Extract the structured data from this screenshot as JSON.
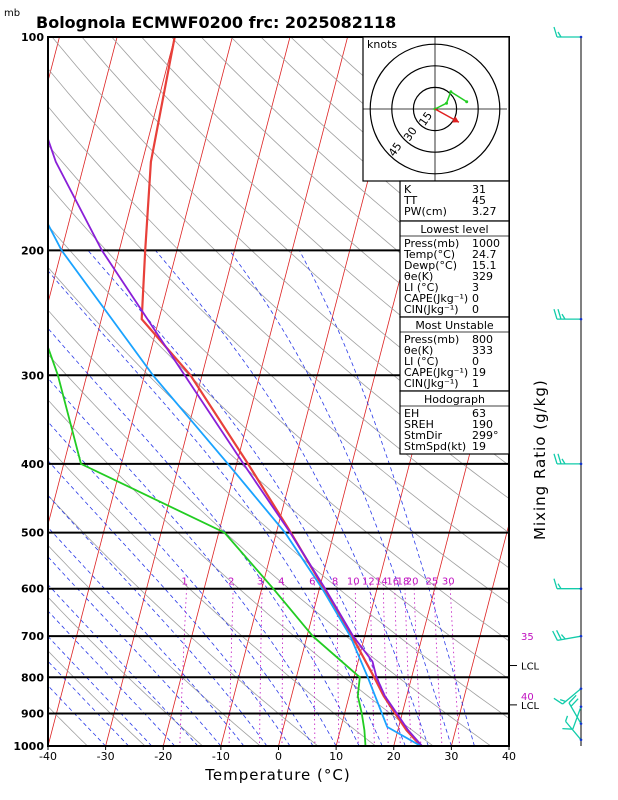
{
  "header": {
    "pressure_unit": "mb",
    "title": "Bolognola ECMWF0200 frc: 2025082118"
  },
  "colors": {
    "temperature": "#e8403a",
    "dewpoint": "#22cc22",
    "virtual_temperature": "#8a1fd8",
    "parcel": "#1aa3ff",
    "isotherm": "#dd2222",
    "dry_adiabat": "#a0a0a0",
    "moist_adiabat": "#2a3ae8",
    "mixing_ratio": "#c010c0",
    "barb": "#11ccaa"
  },
  "chart_data": {
    "type": "line",
    "xlabel": "Temperature (°C)",
    "ylabel": "Mixing Ratio (g/kg)",
    "x_ticks": [
      -40,
      -30,
      -20,
      -10,
      0,
      10,
      20,
      30,
      40
    ],
    "y_ticks": [
      100,
      200,
      300,
      400,
      500,
      600,
      700,
      800,
      900,
      1000
    ],
    "xlim": [
      -40,
      40
    ],
    "ylim": [
      1000,
      100
    ],
    "y_scale": "log",
    "grid": "skew-T log-P",
    "series": [
      {
        "key": "temperature",
        "points": [
          [
            1000,
            24.7
          ],
          [
            950,
            21.5
          ],
          [
            900,
            18.8
          ],
          [
            850,
            16.0
          ],
          [
            800,
            13.5
          ],
          [
            700,
            7.8
          ],
          [
            600,
            0.8
          ],
          [
            500,
            -7.5
          ],
          [
            400,
            -18.0
          ],
          [
            300,
            -32.0
          ],
          [
            250,
            -43.0
          ],
          [
            200,
            -45.5
          ],
          [
            150,
            -48.5
          ],
          [
            100,
            -50.0
          ]
        ]
      },
      {
        "key": "dewpoint",
        "points": [
          [
            1000,
            15.1
          ],
          [
            950,
            14.2
          ],
          [
            900,
            13.0
          ],
          [
            850,
            11.5
          ],
          [
            800,
            11.0
          ],
          [
            700,
            1.0
          ],
          [
            600,
            -8.0
          ],
          [
            500,
            -19.0
          ],
          [
            400,
            -47.0
          ],
          [
            300,
            -55.0
          ],
          [
            250,
            -61.0
          ],
          [
            200,
            -68.0
          ],
          [
            150,
            -74.0
          ],
          [
            100,
            -82.0
          ]
        ]
      },
      {
        "key": "virtual_temperature",
        "points": [
          [
            1000,
            24.9
          ],
          [
            950,
            21.8
          ],
          [
            900,
            19.1
          ],
          [
            850,
            16.2
          ],
          [
            800,
            13.9
          ],
          [
            760,
            12.5
          ],
          [
            700,
            8.0
          ],
          [
            600,
            1.0
          ],
          [
            500,
            -7.6
          ],
          [
            400,
            -18.8
          ],
          [
            300,
            -33.0
          ],
          [
            200,
            -53.0
          ],
          [
            150,
            -65.0
          ],
          [
            110,
            -75.0
          ]
        ]
      },
      {
        "key": "parcel",
        "points": [
          [
            1000,
            24.7
          ],
          [
            940,
            18.0
          ],
          [
            900,
            16.5
          ],
          [
            850,
            14.5
          ],
          [
            800,
            12.4
          ],
          [
            700,
            7.5
          ],
          [
            600,
            0.5
          ],
          [
            500,
            -8.5
          ],
          [
            400,
            -21.5
          ],
          [
            300,
            -38.5
          ],
          [
            200,
            -60.0
          ],
          [
            150,
            -72.0
          ],
          [
            100,
            -86.0
          ]
        ]
      }
    ],
    "mixing_ratio_labels": [
      "1",
      "2",
      "3",
      "4",
      "6",
      "8",
      "10",
      "12",
      "14",
      "16",
      "18",
      "20",
      "25",
      "30"
    ],
    "mixing_ratio_values": [
      1,
      2,
      3,
      4,
      6,
      8,
      10,
      12,
      14,
      16,
      18,
      20,
      25,
      30
    ],
    "side_labels": [
      {
        "text": "35",
        "pressure": 700
      },
      {
        "text": "LCL",
        "pressure": 770
      },
      {
        "text": "40",
        "pressure": 850
      },
      {
        "text": "LCL",
        "pressure": 875
      }
    ],
    "hodograph": {
      "unit_label": "knots",
      "ring_labels": [
        "15",
        "30",
        "45"
      ],
      "ring_values": [
        15,
        30,
        45
      ],
      "trace": [
        [
          0,
          0
        ],
        [
          8,
          4
        ],
        [
          11,
          12
        ],
        [
          22,
          5
        ]
      ],
      "storm_motion": {
        "dir_deg": 299,
        "speed_kt": 19
      }
    },
    "wind_barbs": [
      {
        "pressure": 100,
        "speed": 15,
        "dir": 270
      },
      {
        "pressure": 250,
        "speed": 25,
        "dir": 270
      },
      {
        "pressure": 400,
        "speed": 25,
        "dir": 270
      },
      {
        "pressure": 600,
        "speed": 15,
        "dir": 270
      },
      {
        "pressure": 700,
        "speed": 25,
        "dir": 260
      },
      {
        "pressure": 830,
        "speed": 15,
        "dir": 230
      },
      {
        "pressure": 880,
        "speed": 10,
        "dir": 200
      },
      {
        "pressure": 930,
        "speed": 20,
        "dir": 330
      },
      {
        "pressure": 980,
        "speed": 5,
        "dir": 320
      }
    ]
  },
  "indices": {
    "top": [
      {
        "label": "K",
        "value": "31"
      },
      {
        "label": "TT",
        "value": "45"
      },
      {
        "label": "PW(cm)",
        "value": "3.27"
      }
    ],
    "lowest": {
      "header": "Lowest level",
      "rows": [
        {
          "label": "Press(mb)",
          "value": "1000"
        },
        {
          "label": "Temp(°C)",
          "value": "24.7"
        },
        {
          "label": "Dewp(°C)",
          "value": "15.1"
        },
        {
          "label": "θe(K)",
          "value": "329"
        },
        {
          "label": "LI (°C)",
          "value": "3"
        },
        {
          "label": "CAPE(Jkg⁻¹)",
          "value": "0"
        },
        {
          "label": "CIN(Jkg⁻¹)",
          "value": "0"
        }
      ]
    },
    "unstable": {
      "header": "Most Unstable",
      "rows": [
        {
          "label": "Press(mb)",
          "value": "800"
        },
        {
          "label": "θe(K)",
          "value": "333"
        },
        {
          "label": "LI (°C)",
          "value": "0"
        },
        {
          "label": "CAPE(Jkg⁻¹)",
          "value": "19"
        },
        {
          "label": "CIN(Jkg⁻¹)",
          "value": "1"
        }
      ]
    },
    "hodo": {
      "header": "Hodograph",
      "rows": [
        {
          "label": "EH",
          "value": "63"
        },
        {
          "label": "SREH",
          "value": "190"
        },
        {
          "label": "StmDir",
          "value": "299°"
        },
        {
          "label": "StmSpd(kt)",
          "value": "19"
        }
      ]
    }
  }
}
